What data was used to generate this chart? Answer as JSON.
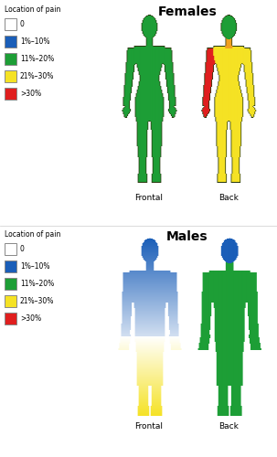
{
  "title_females": "Females",
  "title_males": "Males",
  "legend_title": "Location of pain",
  "legend_labels": [
    "0",
    "1%–10%",
    "11%–20%",
    "21%–30%",
    ">30%"
  ],
  "legend_colors": [
    "#ffffff",
    "#1a5eb8",
    "#1d9e36",
    "#f5e224",
    "#e01f1f"
  ],
  "frontal_label": "Frontal",
  "back_label": "Back",
  "color_0": "#ffffff",
  "color_blue": "#1a5eb8",
  "color_green": "#1d9e36",
  "color_yellow": "#f5e224",
  "color_red": "#e01f1f",
  "bg_color": "#ffffff",
  "outline_color": "#2a3a10",
  "fig_width": 3.03,
  "fig_height": 5.0,
  "dpi": 100
}
